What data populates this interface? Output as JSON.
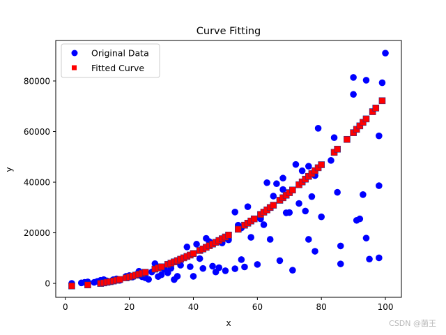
{
  "chart_data": {
    "type": "scatter",
    "title": "Curve Fitting",
    "xlabel": "x",
    "ylabel": "y",
    "xlim": [
      -3,
      105
    ],
    "ylim": [
      -5500,
      96000
    ],
    "xticks": [
      0,
      20,
      40,
      60,
      80,
      100
    ],
    "xtick_labels": [
      "0",
      "20",
      "40",
      "60",
      "80",
      "100"
    ],
    "yticks": [
      0,
      20000,
      40000,
      60000,
      80000
    ],
    "ytick_labels": [
      "0",
      "20000",
      "40000",
      "60000",
      "80000"
    ],
    "grid": false,
    "legend_position": "top-left",
    "series": [
      {
        "name": "Original Data",
        "marker": "circle",
        "color": "#0000ff",
        "x": [
          2,
          5,
          6,
          7,
          9,
          10,
          11,
          12,
          13,
          14,
          15,
          16,
          17,
          19,
          20,
          21,
          22,
          23,
          24,
          25,
          26,
          27,
          28,
          28,
          29,
          30,
          31,
          32,
          33,
          34,
          35,
          36,
          38,
          39,
          40,
          41,
          42,
          43,
          44,
          45,
          46,
          47,
          48,
          49,
          50,
          51,
          53,
          53,
          54,
          55,
          55,
          56,
          57,
          58,
          60,
          61,
          62,
          63,
          64,
          65,
          66,
          67,
          68,
          68,
          69,
          70,
          71,
          72,
          73,
          74,
          75,
          76,
          76,
          77,
          78,
          78,
          79,
          80,
          83,
          84,
          85,
          86,
          86,
          90,
          90,
          91,
          92,
          93,
          94,
          94,
          95,
          98,
          98,
          98,
          99,
          100
        ],
        "y": [
          0,
          200,
          400,
          600,
          400,
          800,
          1200,
          1500,
          1000,
          700,
          1500,
          1800,
          1200,
          2800,
          3100,
          2500,
          3400,
          4800,
          2600,
          2200,
          1600,
          4500,
          7800,
          5600,
          2700,
          3400,
          5500,
          4200,
          6000,
          1500,
          2800,
          7200,
          14400,
          6600,
          2800,
          15500,
          9800,
          5900,
          17800,
          16500,
          6800,
          4500,
          6200,
          16000,
          5000,
          17200,
          28200,
          5800,
          23000,
          21900,
          9400,
          6500,
          30300,
          18200,
          7500,
          25500,
          23200,
          39800,
          17400,
          34500,
          39400,
          9000,
          37100,
          41600,
          27900,
          28000,
          5200,
          47000,
          31600,
          44500,
          28600,
          46300,
          17400,
          34300,
          12700,
          42600,
          61300,
          26300,
          48600,
          57600,
          36000,
          7700,
          14800,
          74700,
          81400,
          24900,
          25500,
          35100,
          80300,
          17900,
          9600,
          58300,
          10100,
          38600,
          79300,
          91000
        ]
      },
      {
        "name": "Fitted Curve",
        "marker": "square",
        "color": "#ff0000",
        "x": [
          2,
          7,
          11,
          12,
          13,
          14,
          15,
          16,
          17,
          19,
          20,
          21,
          22,
          23,
          24,
          25,
          28,
          29,
          30,
          32,
          33,
          34,
          35,
          36,
          37,
          38,
          39,
          40,
          42,
          43,
          44,
          45,
          46,
          47,
          48,
          49,
          50,
          51,
          54,
          56,
          57,
          58,
          59,
          61,
          62,
          63,
          64,
          65,
          67,
          68,
          69,
          70,
          71,
          73,
          74,
          75,
          76,
          77,
          78,
          79,
          80,
          84,
          85,
          88,
          90,
          91,
          92,
          93,
          94,
          96,
          97,
          99
        ],
        "y": [
          -1000,
          -600,
          0,
          200,
          450,
          700,
          950,
          1250,
          1550,
          2200,
          2550,
          2900,
          3250,
          3650,
          4000,
          4400,
          5650,
          6100,
          6550,
          7500,
          8000,
          8500,
          9000,
          9550,
          10100,
          10650,
          11200,
          11800,
          13000,
          13600,
          14250,
          14900,
          15550,
          16250,
          16950,
          17650,
          18350,
          19100,
          21400,
          23000,
          23800,
          24650,
          25500,
          27250,
          28150,
          29050,
          30000,
          30900,
          32850,
          33850,
          34850,
          35850,
          36900,
          39000,
          40100,
          41200,
          42300,
          43400,
          44550,
          45700,
          46900,
          51800,
          53050,
          56900,
          59550,
          60900,
          62250,
          63650,
          65000,
          67850,
          69300,
          72200
        ]
      }
    ]
  },
  "watermark": "CSDN @菌王"
}
